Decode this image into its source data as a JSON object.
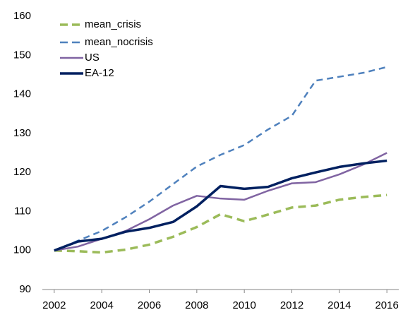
{
  "chart_data": {
    "type": "line",
    "x": [
      2002,
      2003,
      2004,
      2005,
      2006,
      2007,
      2008,
      2009,
      2010,
      2011,
      2012,
      2013,
      2014,
      2015,
      2016
    ],
    "series": [
      {
        "name": "mean_crisis",
        "color": "#9bbb59",
        "dashed": true,
        "values": [
          100,
          99.8,
          99.5,
          100.2,
          101.5,
          103.5,
          106,
          109.3,
          107.5,
          109.2,
          111,
          111.5,
          113,
          113.7,
          114.2
        ]
      },
      {
        "name": "mean_nocrisis",
        "color": "#4f81bd",
        "dashed": true,
        "values": [
          100,
          102.5,
          105,
          108.5,
          112.5,
          117,
          121.5,
          124.5,
          127,
          131,
          134.5,
          143.5,
          144.5,
          145.5,
          147
        ]
      },
      {
        "name": "US",
        "color": "#8064a2",
        "dashed": false,
        "values": [
          100,
          101,
          103,
          105,
          108,
          111.5,
          114,
          113.3,
          113,
          115.3,
          117.2,
          117.5,
          119.5,
          122,
          125
        ]
      },
      {
        "name": "EA-12",
        "color": "#002060",
        "dashed": false,
        "values": [
          100,
          102.3,
          103,
          104.8,
          105.8,
          107.3,
          111.3,
          116.5,
          115.8,
          116.3,
          118.5,
          120,
          121.4,
          122.3,
          123
        ]
      }
    ],
    "xlim": [
      2001.5,
      2016.5
    ],
    "xticks": [
      2002,
      2004,
      2006,
      2008,
      2010,
      2012,
      2014,
      2016
    ],
    "ylim": [
      90,
      160
    ],
    "yticks": [
      90,
      100,
      110,
      120,
      130,
      140,
      150,
      160
    ],
    "grid": false,
    "legend": "top-left"
  }
}
